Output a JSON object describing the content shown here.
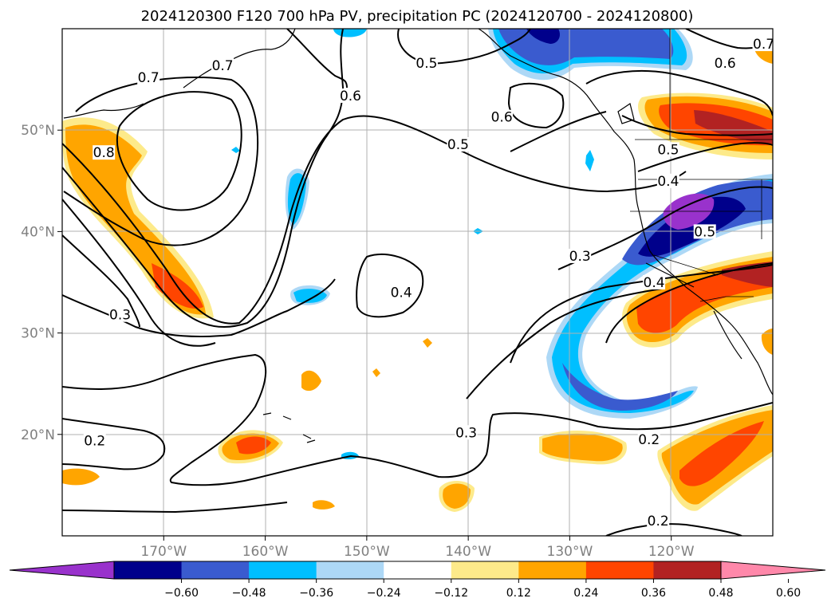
{
  "chart_data": {
    "type": "heatmap",
    "title": "2024120300 F120 700 hPa PV, precipitation PC (2024120700 - 2024120800)",
    "projection": "PlateCarree map of the North Pacific",
    "lon_range": [
      -180,
      -110
    ],
    "lat_range": [
      10,
      60
    ],
    "grid": true,
    "lon_ticks": [
      -170,
      -160,
      -150,
      -140,
      -130,
      -120
    ],
    "lon_tick_labels": [
      "170°W",
      "160°W",
      "150°W",
      "140°W",
      "130°W",
      "120°W"
    ],
    "lat_ticks": [
      20,
      30,
      40,
      50
    ],
    "lat_tick_labels": [
      "20°N",
      "30°N",
      "40°N",
      "50°N"
    ],
    "colorbar": {
      "orientation": "horizontal",
      "extend": "both",
      "ticks": [
        -0.6,
        -0.48,
        -0.36,
        -0.24,
        -0.12,
        0.12,
        0.24,
        0.36,
        0.48,
        0.6
      ],
      "tick_labels": [
        "−0.60",
        "−0.48",
        "−0.36",
        "−0.24",
        "−0.12",
        "0.12",
        "0.24",
        "0.36",
        "0.48",
        "0.60"
      ],
      "colors": [
        "#9932cc",
        "#00008b",
        "#3a5bcf",
        "#00bfff",
        "#add8f6",
        "#ffffff",
        "#fdea8a",
        "#ffa500",
        "#ff4500",
        "#b22222",
        "#ff88aa"
      ]
    },
    "contour_variable": "700 hPa PV",
    "contour_labels": [
      {
        "text": "0.7",
        "lon": -171.5,
        "lat": 55.2
      },
      {
        "text": "0.7",
        "lon": -164.2,
        "lat": 56.4
      },
      {
        "text": "0.6",
        "lon": -151.6,
        "lat": 53.4
      },
      {
        "text": "0.5",
        "lon": -144.1,
        "lat": 56.6
      },
      {
        "text": "0.5",
        "lon": -141.0,
        "lat": 48.6
      },
      {
        "text": "0.6",
        "lon": -136.7,
        "lat": 51.3
      },
      {
        "text": "0.6",
        "lon": -114.7,
        "lat": 56.6
      },
      {
        "text": "0.7",
        "lon": -110.9,
        "lat": 58.5
      },
      {
        "text": "0.5",
        "lon": -120.3,
        "lat": 48.1
      },
      {
        "text": "0.4",
        "lon": -120.3,
        "lat": 45.0
      },
      {
        "text": "0.5",
        "lon": -116.7,
        "lat": 40.0
      },
      {
        "text": "0.8",
        "lon": -175.9,
        "lat": 47.8
      },
      {
        "text": "0.4",
        "lon": -146.6,
        "lat": 34.0
      },
      {
        "text": "0.3",
        "lon": -129.0,
        "lat": 37.6
      },
      {
        "text": "0.4",
        "lon": -121.7,
        "lat": 35.0
      },
      {
        "text": "0.3",
        "lon": -174.3,
        "lat": 31.8
      },
      {
        "text": "0.2",
        "lon": -176.8,
        "lat": 19.4
      },
      {
        "text": "0.3",
        "lon": -140.2,
        "lat": 20.2
      },
      {
        "text": "0.2",
        "lon": -122.2,
        "lat": 19.5
      },
      {
        "text": "0.2",
        "lon": -121.3,
        "lat": 11.5
      }
    ]
  }
}
